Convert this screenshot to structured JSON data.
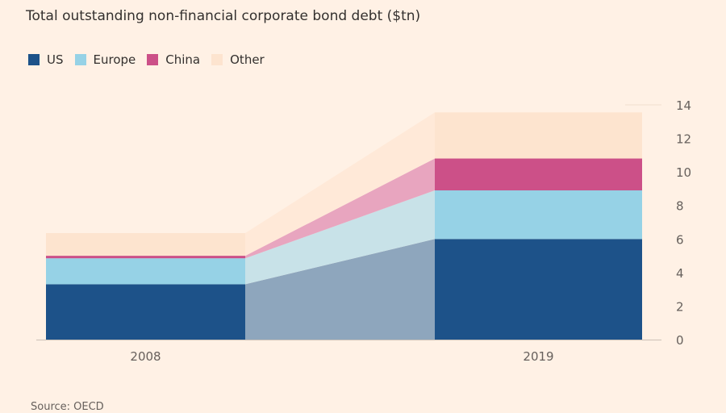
{
  "chart_data": {
    "type": "bar",
    "stacked": true,
    "title": "Total outstanding non-financial corporate bond debt ($tn)",
    "categories": [
      "2008",
      "2019"
    ],
    "series": [
      {
        "name": "US",
        "values": [
          3.3,
          6.0
        ],
        "color": "#1d5289"
      },
      {
        "name": "Europe",
        "values": [
          1.55,
          2.9
        ],
        "color": "#96d2e6"
      },
      {
        "name": "China",
        "values": [
          0.15,
          1.9
        ],
        "color": "#cc5088"
      },
      {
        "name": "Other",
        "values": [
          1.35,
          2.75
        ],
        "color": "#fde4cf"
      }
    ],
    "connector_colors": [
      "#8ea6bd",
      "#c8e2e8",
      "#e8a5bf",
      "#ffe9d8"
    ],
    "ylim": [
      0,
      14
    ],
    "yticks": [
      "0",
      "2",
      "4",
      "6",
      "8",
      "10",
      "12",
      "14"
    ],
    "xlabel": "",
    "ylabel": "",
    "legend": "top-left",
    "source": "Source: OECD"
  }
}
